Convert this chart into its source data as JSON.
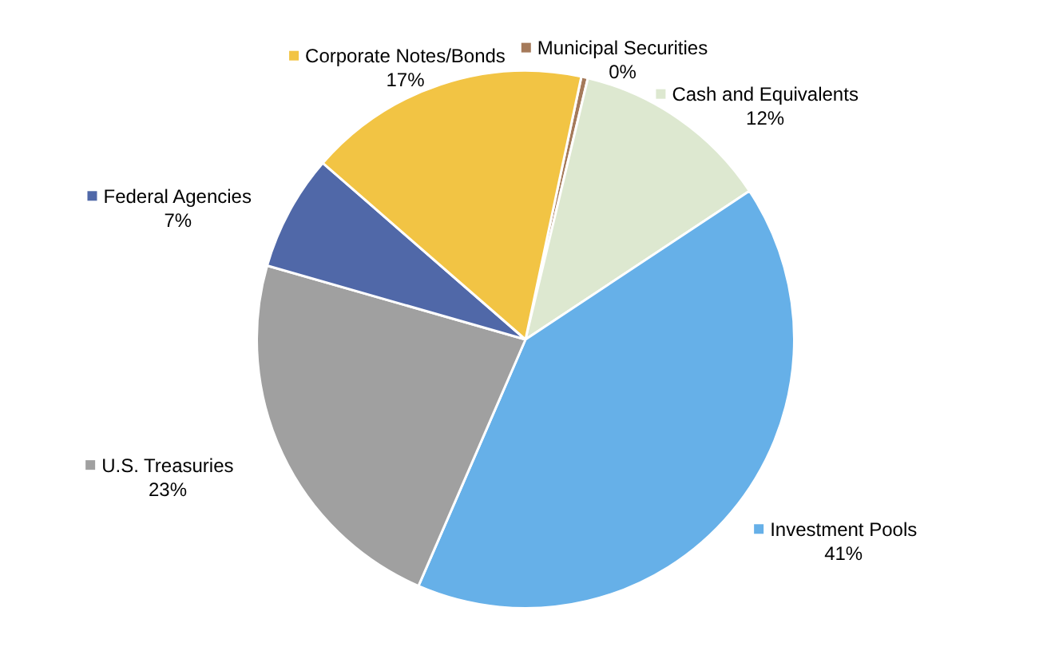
{
  "chart_data": {
    "type": "pie",
    "categories": [
      "Municipal Securities",
      "Cash and Equivalents",
      "Investment Pools",
      "U.S. Treasuries",
      "Federal Agencies",
      "Corporate Notes/Bonds"
    ],
    "values": [
      0.4,
      12,
      41,
      23,
      7,
      17
    ],
    "value_labels": [
      "0%",
      "12%",
      "41%",
      "23%",
      "7%",
      "17%"
    ],
    "colors": [
      "#a57a5a",
      "#dde8d0",
      "#66b0e8",
      "#a0a0a0",
      "#5068a8",
      "#f2c444"
    ],
    "legend": "right"
  }
}
